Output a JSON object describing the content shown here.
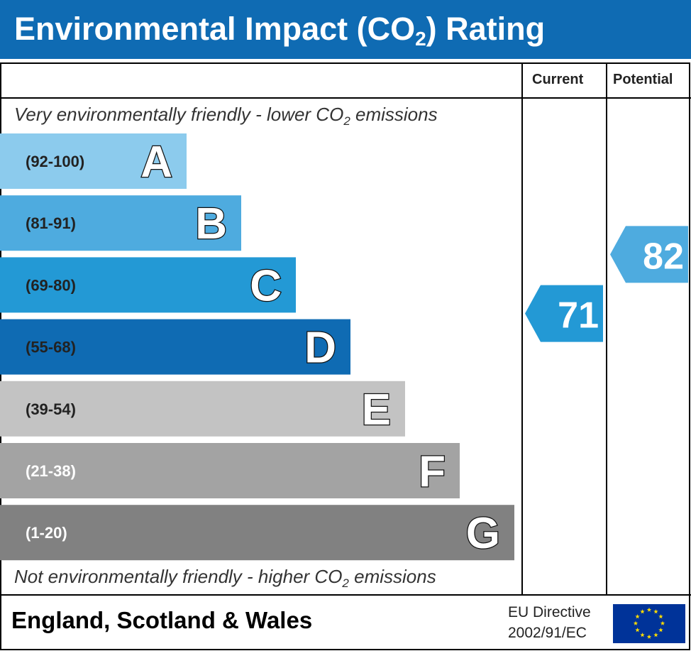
{
  "header": {
    "title_main": "Environmental Impact (CO",
    "title_sub": "2",
    "title_end": ") Rating"
  },
  "columns": {
    "current": "Current",
    "potential": "Potential"
  },
  "notes": {
    "top_main": "Very environmentally friendly - lower CO",
    "top_sub": "2",
    "top_end": " emissions",
    "bottom_main": "Not environmentally friendly - higher CO",
    "bottom_sub": "2",
    "bottom_end": " emissions"
  },
  "footer": {
    "region": "England, Scotland & Wales",
    "directive_line1": "EU Directive",
    "directive_line2": "2002/91/EC"
  },
  "colors": {
    "header": "#0f6bb3",
    "A": "#8ccbed",
    "B": "#4eabdf",
    "C": "#2399d5",
    "D": "#0f6bb3",
    "E": "#c3c3c3",
    "F": "#a3a3a3",
    "G": "#818181",
    "eu_flag": "#003399",
    "eu_stars": "#ffdd00"
  },
  "chart_data": {
    "type": "bar",
    "categories": [
      "A",
      "B",
      "C",
      "D",
      "E",
      "F",
      "G"
    ],
    "ranges": [
      "(92-100)",
      "(81-91)",
      "(69-80)",
      "(55-68)",
      "(39-54)",
      "(21-38)",
      "(1-20)"
    ],
    "current": {
      "value": 71,
      "band": "C"
    },
    "potential": {
      "value": 82,
      "band": "B"
    }
  }
}
